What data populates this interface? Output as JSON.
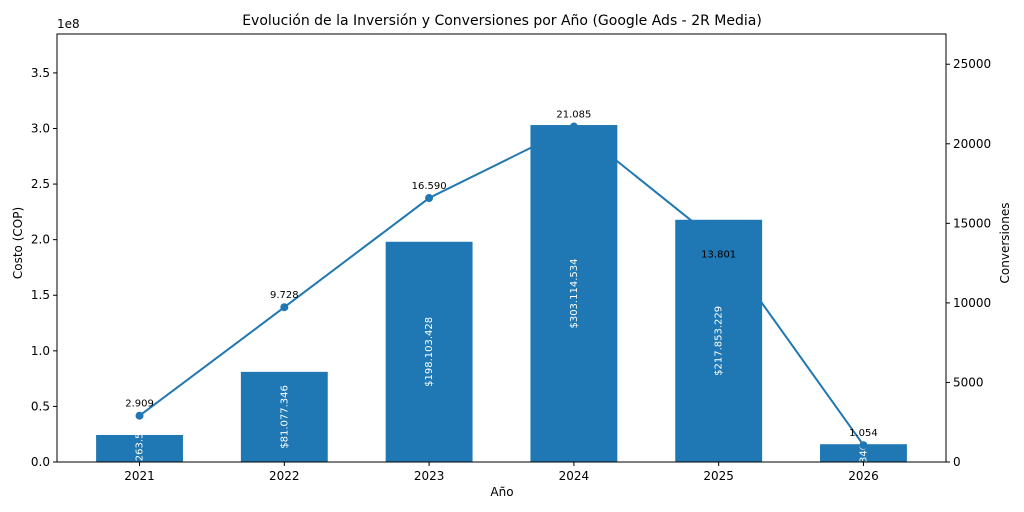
{
  "chart_data": {
    "type": "bar+line",
    "title": "Evolución de la Inversión y Conversiones por Año (Google Ads - 2R Media)",
    "xlabel": "Año",
    "ylabel_left": "Costo (COP)",
    "ylabel_right": "Conversiones",
    "left_offset_label": "1e8",
    "categories": [
      "2021",
      "2022",
      "2023",
      "2024",
      "2025",
      "2026"
    ],
    "ylim_left": [
      0,
      3.85
    ],
    "yticks_left": [
      "0.0",
      "0.5",
      "1.0",
      "1.5",
      "2.0",
      "2.5",
      "3.0",
      "3.5"
    ],
    "ylim_right": [
      0,
      26900
    ],
    "yticks_right": [
      "0",
      "5000",
      "10000",
      "15000",
      "20000",
      "25000"
    ],
    "series": [
      {
        "kind": "bar",
        "axis": "left",
        "color": "#1f77b4",
        "values": [
          0.243,
          0.811,
          1.981,
          3.031,
          2.179,
          0.16
        ],
        "labels": [
          ".263.5",
          "$81.077.346",
          "$198.103.428",
          "$303.114.534",
          "$217.853.229",
          "34C"
        ]
      },
      {
        "kind": "line",
        "axis": "right",
        "color": "#1f77b4",
        "values": [
          2909,
          9728,
          16590,
          21085,
          13801,
          1054
        ],
        "labels": [
          "2.909",
          "9.728",
          "16.590",
          "21.085",
          "13.801",
          "1.054"
        ]
      }
    ],
    "grid": false
  }
}
